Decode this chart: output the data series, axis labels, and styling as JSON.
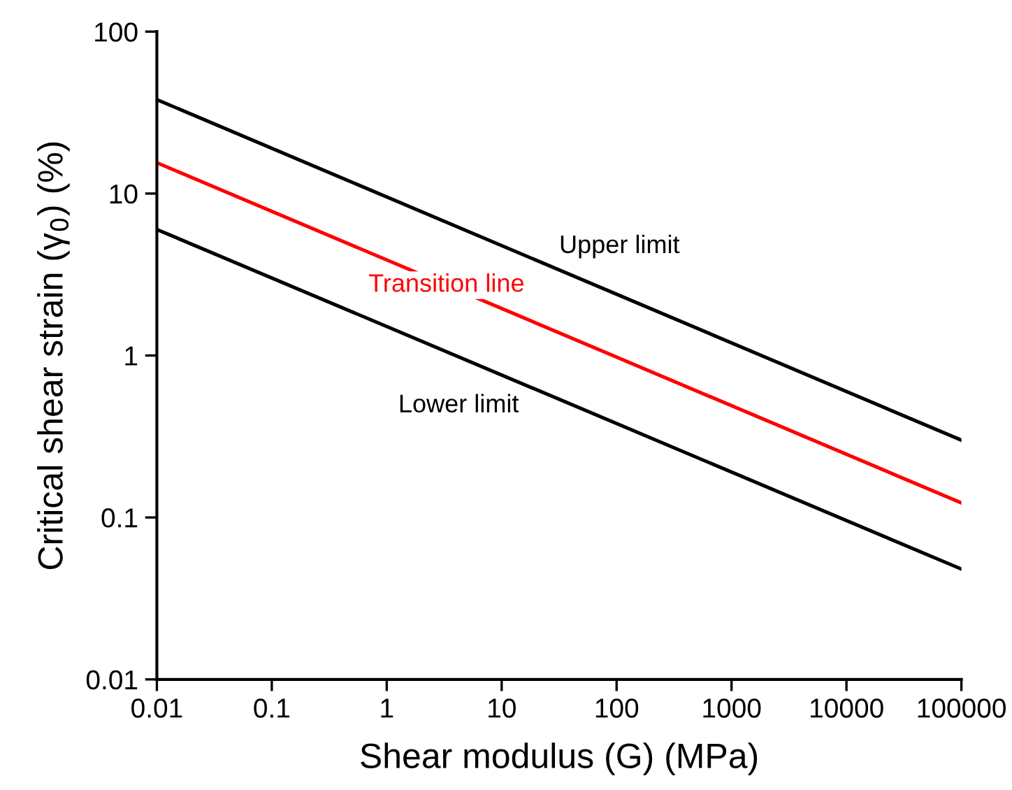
{
  "chart_data": {
    "type": "line",
    "xlabel": "Shear modulus (G) (MPa)",
    "ylabel": "Critical shear strain (γ$_{0}$) (%)",
    "x": [
      0.01,
      100000
    ],
    "series": [
      {
        "name": "Upper limit",
        "color": "#000000",
        "values": [
          38,
          0.3
        ]
      },
      {
        "name": "Transition line",
        "color": "#ff0000",
        "values": [
          15.5,
          0.123
        ]
      },
      {
        "name": "Lower limit",
        "color": "#000000",
        "values": [
          6,
          0.048
        ]
      }
    ],
    "log": "xy",
    "xlim": [
      0.01,
      100000
    ],
    "ylim": [
      0.01,
      100
    ],
    "xticks": [
      0.01,
      0.1,
      1,
      10,
      100,
      1000,
      10000,
      100000
    ],
    "yticks": [
      0.01,
      0.1,
      1,
      10,
      100
    ],
    "grid": false,
    "marker": "none",
    "line_style": "solid"
  }
}
